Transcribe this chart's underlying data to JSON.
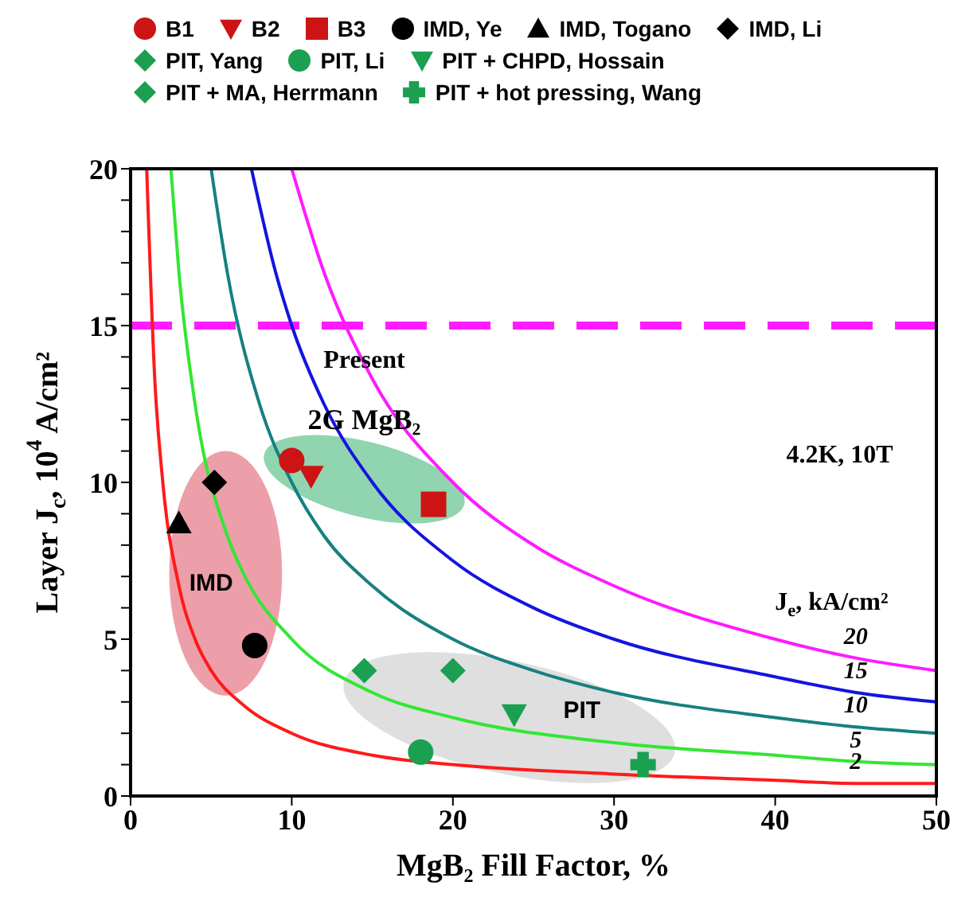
{
  "chart_data": {
    "type": "scatter",
    "xlabel": "MgB₂ Fill Factor, %",
    "ylabel": "Layer J$_{c}$, 10$^{4}$ A/cm²",
    "xlim": [
      0,
      50
    ],
    "xticks": [
      0,
      10,
      20,
      30,
      40,
      50
    ],
    "ylim": [
      0,
      20
    ],
    "yticks": [
      0,
      {
        "value": 1,
        "label": null
      },
      {
        "value": 2,
        "label": null
      },
      {
        "value": 3,
        "label": null
      },
      {
        "value": 4,
        "label": null
      },
      5,
      {
        "value": 6,
        "label": null
      },
      {
        "value": 7,
        "label": null
      },
      {
        "value": 8,
        "label": null
      },
      {
        "value": 9,
        "label": null
      },
      10,
      {
        "value": 11,
        "label": null
      },
      {
        "value": 12,
        "label": null
      },
      {
        "value": 13,
        "label": null
      },
      {
        "value": 14,
        "label": null
      },
      15,
      {
        "value": 16,
        "label": null
      },
      {
        "value": 17,
        "label": null
      },
      {
        "value": 18,
        "label": null
      },
      {
        "value": 19,
        "label": null
      },
      20
    ],
    "grid": false,
    "legend": "top",
    "series": [
      {
        "name": "2",
        "type": "line",
        "marker": "none",
        "color": "#ff1a1a",
        "x": [
          1,
          1.5,
          2,
          3,
          4,
          5,
          7,
          10,
          15,
          20,
          30,
          40,
          45,
          50
        ],
        "values": [
          20,
          13.3,
          10,
          6.7,
          5,
          4,
          2.9,
          2,
          1.3,
          1,
          0.7,
          0.5,
          0.4,
          0.4
        ]
      },
      {
        "name": "5",
        "type": "line",
        "marker": "none",
        "color": "#33e633",
        "x": [
          2.5,
          3,
          4,
          6,
          7,
          10,
          15,
          20,
          30,
          40,
          45,
          50
        ],
        "values": [
          20,
          16.7,
          12.5,
          8.3,
          7.1,
          5,
          3.3,
          2.5,
          1.7,
          1.3,
          1.1,
          1
        ]
      },
      {
        "name": "10",
        "type": "line",
        "marker": "none",
        "color": "#178080",
        "x": [
          5,
          6,
          8,
          10,
          12,
          15,
          20,
          25,
          30,
          40,
          45,
          50
        ],
        "values": [
          20,
          16.7,
          12.5,
          10,
          8.3,
          6.7,
          5,
          4,
          3.3,
          2.5,
          2.2,
          2
        ]
      },
      {
        "name": "15",
        "type": "line",
        "marker": "none",
        "color": "#1414e0",
        "x": [
          7.5,
          9,
          10,
          12,
          15,
          20,
          25,
          30,
          40,
          45,
          50
        ],
        "values": [
          20,
          16.7,
          15,
          12.5,
          10,
          7.5,
          6,
          5,
          3.8,
          3.3,
          3
        ]
      },
      {
        "name": "20",
        "type": "line",
        "marker": "none",
        "color": "#ff1aff",
        "x": [
          10,
          12,
          15,
          20,
          25,
          30,
          40,
          45,
          50
        ],
        "values": [
          20,
          16.7,
          13.3,
          10,
          8,
          6.7,
          5,
          4.4,
          4
        ]
      },
      {
        "name": "B1",
        "marker": "circle",
        "color": "#cc1414",
        "x": [
          10
        ],
        "values": [
          10.7
        ]
      },
      {
        "name": "B2",
        "marker": "triangle_down",
        "color": "#cc1414",
        "x": [
          11.2
        ],
        "values": [
          10.2
        ]
      },
      {
        "name": "B3",
        "marker": "square",
        "color": "#cc1414",
        "x": [
          18.8
        ],
        "values": [
          9.3
        ]
      },
      {
        "name": "IMD, Ye",
        "marker": "circle",
        "color": "#000000",
        "x": [
          7.7
        ],
        "values": [
          4.8
        ]
      },
      {
        "name": "IMD, Togano",
        "marker": "triangle",
        "color": "#000000",
        "x": [
          3
        ],
        "values": [
          8.7
        ]
      },
      {
        "name": "IMD, Li",
        "marker": "diamond",
        "color": "#000000",
        "x": [
          5.2
        ],
        "values": [
          10
        ]
      },
      {
        "name": "PIT, Yang",
        "marker": "diamond",
        "color": "#1aa050",
        "x": [
          14.5
        ],
        "values": [
          4
        ]
      },
      {
        "name": "PIT, Li",
        "marker": "circle",
        "color": "#1aa050",
        "x": [
          18
        ],
        "values": [
          1.4
        ]
      },
      {
        "name": "PIT + CHPD, Hossain",
        "marker": "triangle_down",
        "color": "#1aa050",
        "x": [
          23.8
        ],
        "values": [
          2.6
        ]
      },
      {
        "name": "PIT + MA, Herrmann",
        "marker": "diamond",
        "color": "#1aa050",
        "x": [
          20
        ],
        "values": [
          4
        ]
      },
      {
        "name": "PIT + hot pressing, Wang",
        "marker": "cross",
        "color": "#1aa050",
        "x": [
          31.8
        ],
        "values": [
          1
        ]
      }
    ],
    "ref_lines": [
      {
        "axis": "y",
        "value": 15,
        "color": "#ff1aff",
        "line_style": "dashed"
      }
    ],
    "annotations": [
      "Present",
      "2G MgB₂",
      "IMD",
      "PIT",
      "4.2K, 10T",
      "J$_{e}$, kA/cm²"
    ]
  }
}
